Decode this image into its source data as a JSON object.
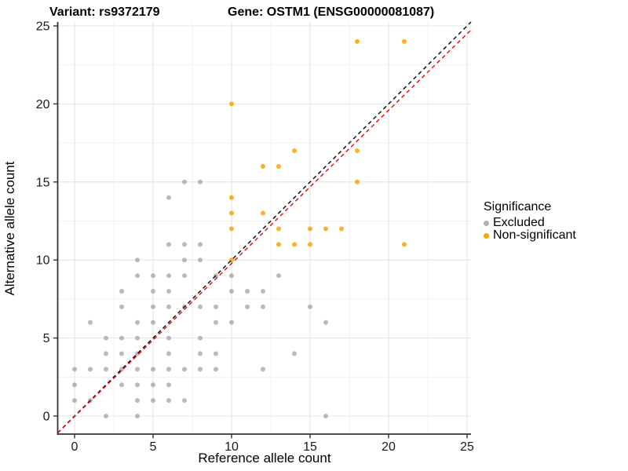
{
  "titles": {
    "left": "Variant: rs9372179",
    "right": "Gene: OSTM1 (ENSG00000081087)"
  },
  "axes": {
    "x_label": "Reference allele count",
    "y_label": "Alternative allele count",
    "x_ticks": [
      0,
      5,
      10,
      15,
      20,
      25
    ],
    "y_ticks": [
      0,
      5,
      10,
      15,
      20,
      25
    ],
    "x_minor": [
      2.5,
      7.5,
      12.5,
      17.5,
      22.5
    ],
    "y_minor": [
      2.5,
      7.5,
      12.5,
      17.5,
      22.5
    ]
  },
  "legend": {
    "title": "Significance",
    "items": [
      {
        "label": "Excluded",
        "color": "#b1b1b1"
      },
      {
        "label": "Non-significant",
        "color": "#ffa500"
      }
    ]
  },
  "colors": {
    "excluded_point": "rgba(143,143,143,0.62)",
    "nonsignificant_point": "rgba(255,165,0,0.88)",
    "identity_line": "#111111",
    "fit_line": "#e81010",
    "grid_major": "#e4e4e4",
    "grid_minor": "#f2f2f2",
    "axis_line": "#333333",
    "tick_text": "#1a1a1a"
  },
  "chart_data": {
    "type": "scatter",
    "title": "Variant: rs9372179 / Gene: OSTM1 (ENSG00000081087)",
    "xlabel": "Reference allele count",
    "ylabel": "Alternative allele count",
    "xlim": [
      -1.1,
      25.3
    ],
    "ylim": [
      -1.2,
      25.3
    ],
    "grid": true,
    "legend_position": "right",
    "series": [
      {
        "name": "Excluded",
        "color": "#b1b1b1",
        "points": [
          [
            7,
            15
          ],
          [
            8,
            15
          ],
          [
            6,
            14
          ],
          [
            6,
            11
          ],
          [
            7,
            11
          ],
          [
            8,
            11
          ],
          [
            4,
            10
          ],
          [
            7,
            10
          ],
          [
            8,
            10
          ],
          [
            4,
            9
          ],
          [
            5,
            9
          ],
          [
            6,
            9
          ],
          [
            7,
            9
          ],
          [
            9,
            9
          ],
          [
            10,
            9
          ],
          [
            13,
            9
          ],
          [
            3,
            8
          ],
          [
            5,
            8
          ],
          [
            6,
            8
          ],
          [
            10,
            8
          ],
          [
            11,
            8
          ],
          [
            12,
            8
          ],
          [
            3,
            7
          ],
          [
            5,
            7
          ],
          [
            6,
            7
          ],
          [
            7,
            7
          ],
          [
            8,
            7
          ],
          [
            9,
            7
          ],
          [
            11,
            7
          ],
          [
            12,
            7
          ],
          [
            15,
            7
          ],
          [
            1,
            6
          ],
          [
            4,
            6
          ],
          [
            5,
            6
          ],
          [
            9,
            6
          ],
          [
            10,
            6
          ],
          [
            16,
            6
          ],
          [
            2,
            5
          ],
          [
            3,
            5
          ],
          [
            4,
            5
          ],
          [
            6,
            5
          ],
          [
            8,
            5
          ],
          [
            2,
            4
          ],
          [
            3,
            4
          ],
          [
            4,
            4
          ],
          [
            6,
            4
          ],
          [
            8,
            4
          ],
          [
            9,
            4
          ],
          [
            14,
            4
          ],
          [
            0,
            3
          ],
          [
            1,
            3
          ],
          [
            2,
            3
          ],
          [
            3,
            3
          ],
          [
            4,
            3
          ],
          [
            5,
            3
          ],
          [
            6,
            3
          ],
          [
            7,
            3
          ],
          [
            8,
            3
          ],
          [
            9,
            3
          ],
          [
            12,
            3
          ],
          [
            0,
            2
          ],
          [
            3,
            2
          ],
          [
            4,
            2
          ],
          [
            5,
            2
          ],
          [
            6,
            2
          ],
          [
            0,
            1
          ],
          [
            1,
            1
          ],
          [
            4,
            1
          ],
          [
            5,
            1
          ],
          [
            6,
            1
          ],
          [
            7,
            1
          ],
          [
            2,
            0
          ],
          [
            4,
            0
          ],
          [
            16,
            0
          ]
        ]
      },
      {
        "name": "Non-significant",
        "color": "#ffa500",
        "points": [
          [
            10,
            10
          ],
          [
            13,
            11
          ],
          [
            14,
            11
          ],
          [
            15,
            11
          ],
          [
            21,
            11
          ],
          [
            10,
            12
          ],
          [
            13,
            12
          ],
          [
            15,
            12
          ],
          [
            16,
            12
          ],
          [
            17,
            12
          ],
          [
            10,
            13
          ],
          [
            12,
            13
          ],
          [
            10,
            14
          ],
          [
            18,
            15
          ],
          [
            12,
            16
          ],
          [
            13,
            16
          ],
          [
            14,
            17
          ],
          [
            18,
            17
          ],
          [
            10,
            20
          ],
          [
            18,
            24
          ],
          [
            21,
            24
          ]
        ]
      }
    ],
    "lines": [
      {
        "name": "identity",
        "slope": 1.0,
        "intercept": 0.0,
        "style": "dashed",
        "color": "#111111"
      },
      {
        "name": "fit",
        "slope": 0.981,
        "intercept": -0.03,
        "style": "dashed",
        "color": "#e81010"
      }
    ]
  }
}
